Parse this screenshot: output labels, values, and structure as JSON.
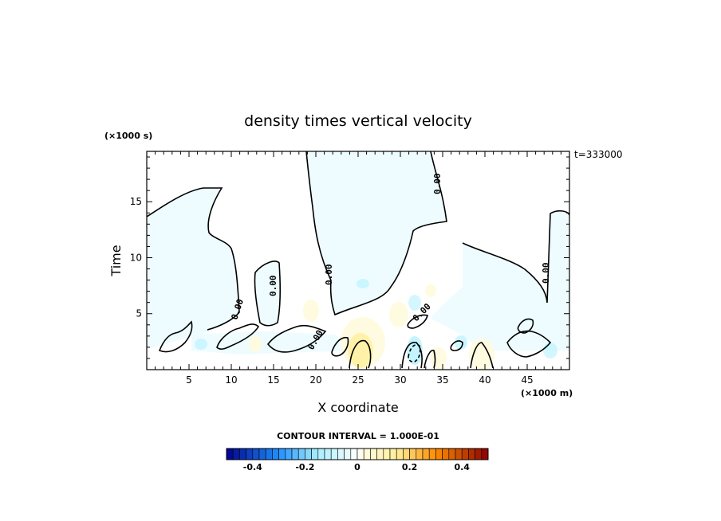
{
  "chart_data": {
    "type": "heatmap",
    "title": "density times vertical velocity",
    "xlabel": "X coordinate",
    "ylabel": "Time",
    "x_unit": "(×1000 m)",
    "y_unit": "(×1000 s)",
    "xlim": [
      0,
      50
    ],
    "ylim": [
      0,
      19.5
    ],
    "x_ticks": [
      5,
      10,
      15,
      20,
      25,
      30,
      35,
      40,
      45
    ],
    "y_ticks": [
      5,
      10,
      15
    ],
    "time_stamp": "t=333000",
    "contour_interval_text": "CONTOUR INTERVAL = 1.000E-01",
    "contour_line_label": "0.00",
    "colorbar": {
      "range": [
        -0.5,
        0.5
      ],
      "step": 0.025,
      "tick_values": [
        -0.4,
        -0.2,
        0,
        0.2,
        0.4
      ],
      "tick_labels": [
        "-0.4",
        "-0.2",
        "0",
        "0.2",
        "0.4"
      ]
    },
    "colors": {
      "neg_strong": "#00008c",
      "neg_mid": "#1e90ff",
      "neg_weak": "#aaf0ff",
      "neg_faint": "#eefcff",
      "zero": "#ffffff",
      "pos_faint": "#fffbe0",
      "pos_weak": "#fff09a",
      "pos_mid": "#ff8c00",
      "pos_strong": "#8c0000"
    }
  }
}
